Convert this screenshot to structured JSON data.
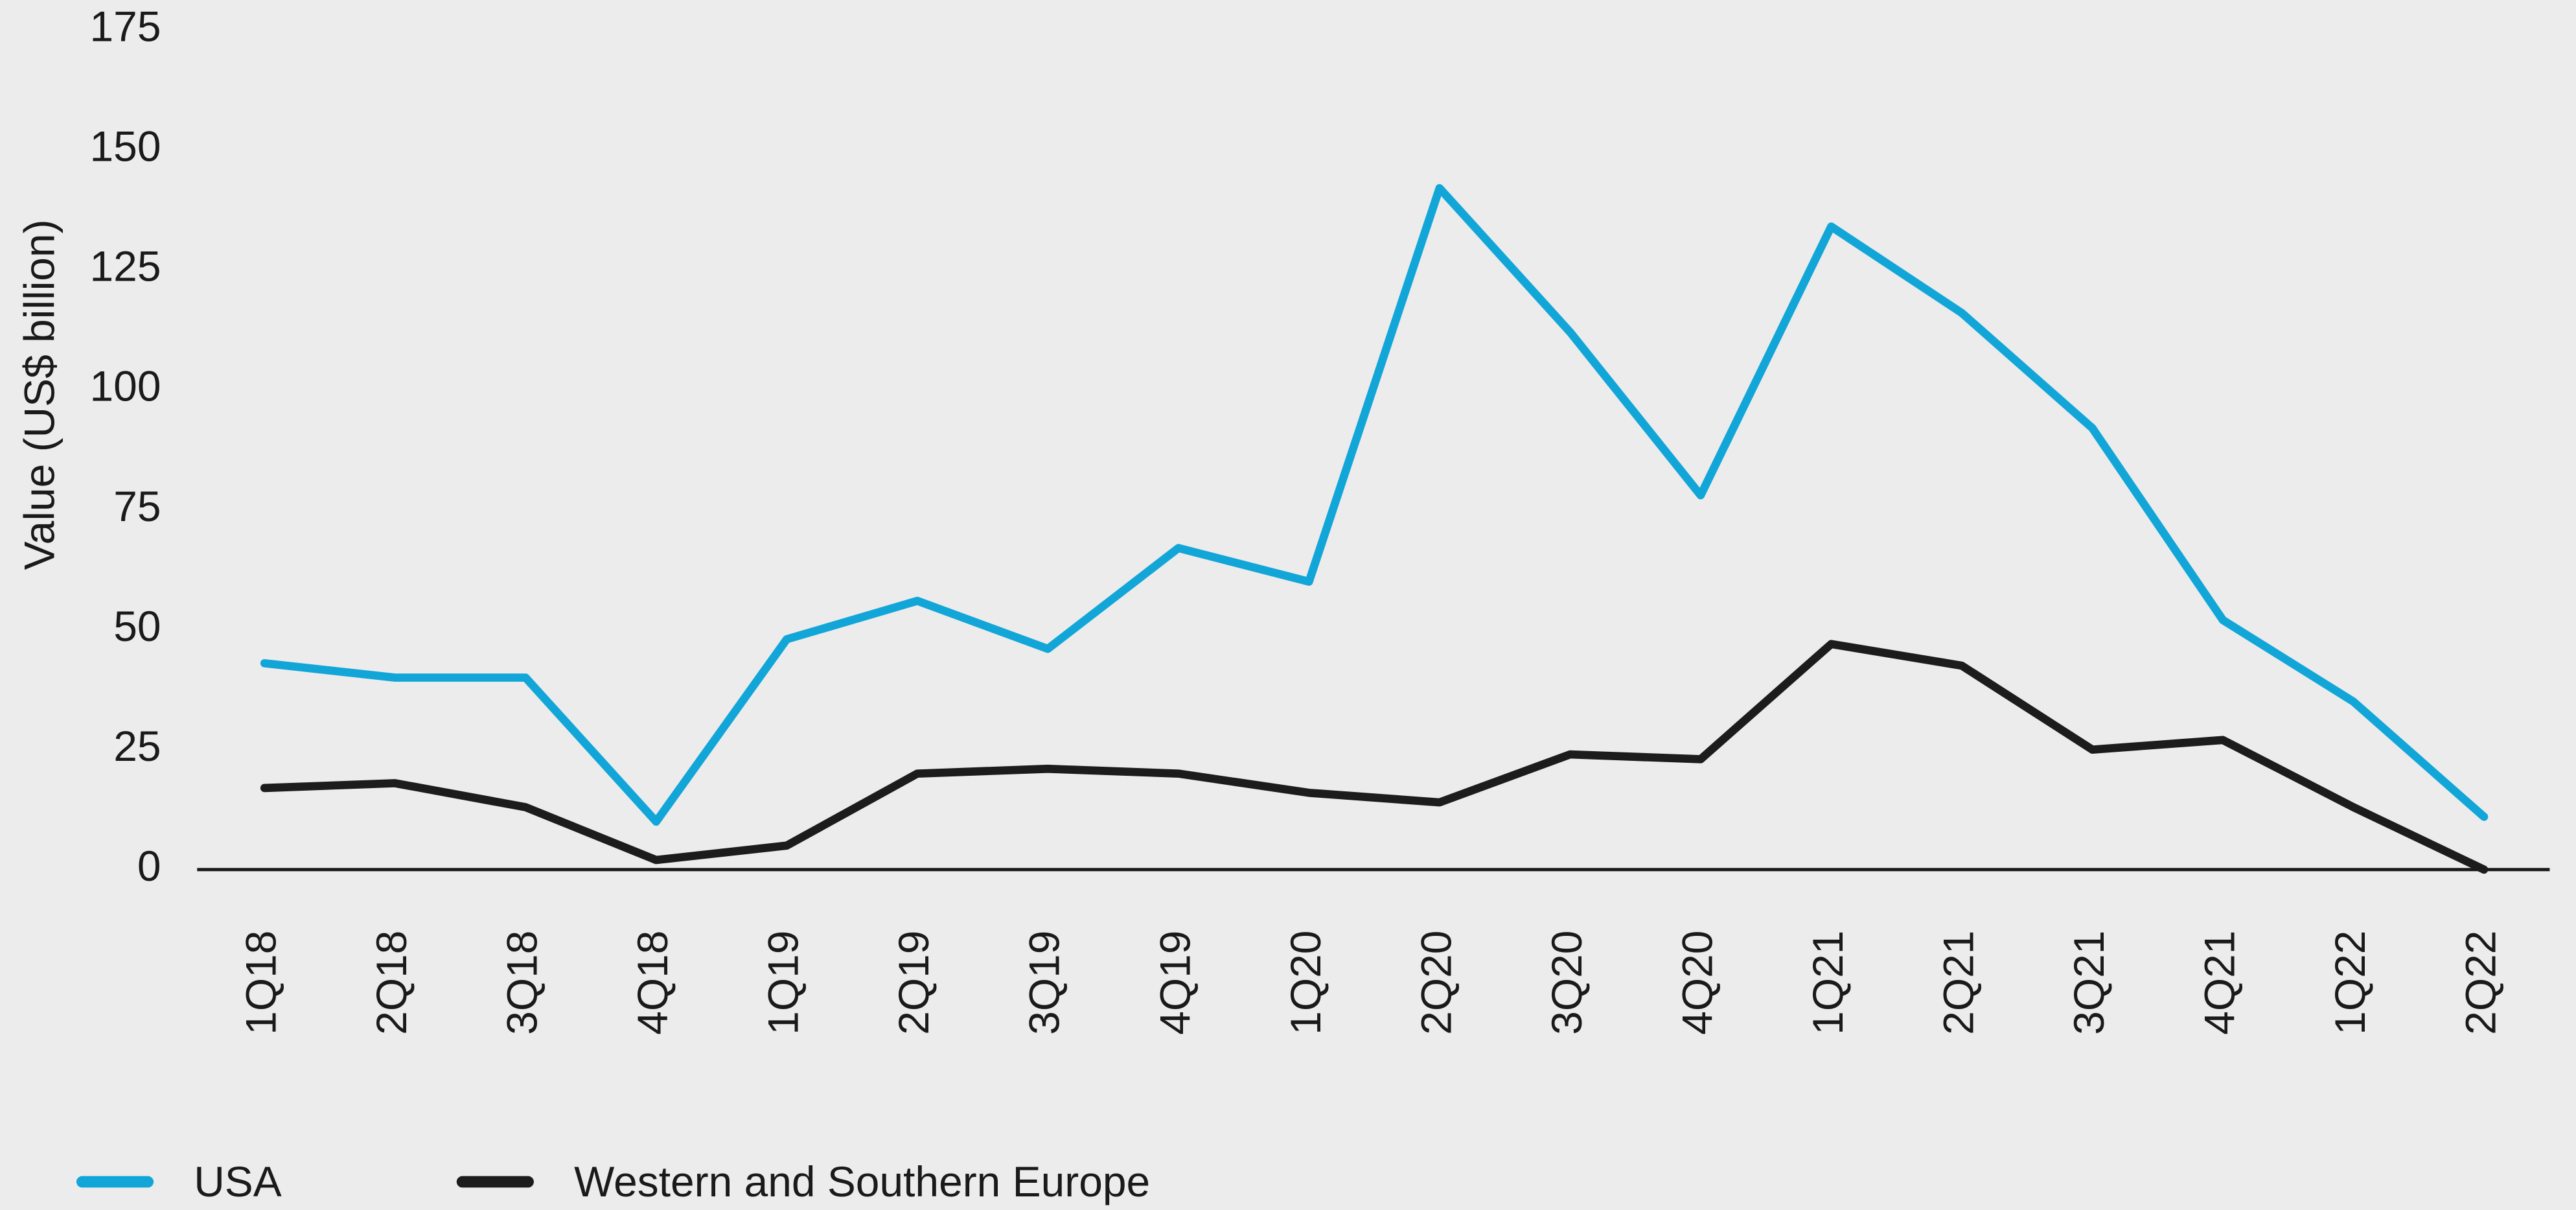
{
  "chart_data": {
    "type": "line",
    "y_label": "Value (US$ billion)",
    "categories": [
      "1Q18",
      "2Q18",
      "3Q18",
      "4Q18",
      "1Q19",
      "2Q19",
      "3Q19",
      "4Q19",
      "1Q20",
      "2Q20",
      "3Q20",
      "4Q20",
      "1Q21",
      "2Q21",
      "3Q21",
      "4Q21",
      "1Q22",
      "2Q22"
    ],
    "series": [
      {
        "name": "USA",
        "color": "#12a6d8",
        "values": [
          43,
          40,
          40,
          10,
          48,
          56,
          46,
          67,
          60,
          142,
          112,
          78,
          134,
          116,
          92,
          52,
          35,
          11
        ]
      },
      {
        "name": "Western and Southern Europe",
        "color": "#1c1c1c",
        "values": [
          17,
          18,
          13,
          2,
          5,
          20,
          21,
          20,
          16,
          14,
          24,
          23,
          47,
          42.5,
          25,
          27,
          13,
          0
        ]
      }
    ],
    "ylim": [
      0,
      175
    ],
    "yticks": [
      0,
      25,
      50,
      75,
      100,
      125,
      150,
      175
    ],
    "grid": false,
    "legend": "bottom-left"
  }
}
